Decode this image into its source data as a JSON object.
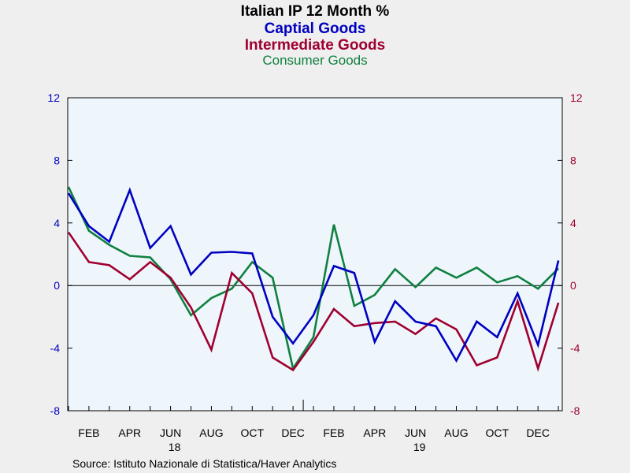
{
  "chart_data": {
    "type": "line",
    "title": "Italian IP 12 Month %",
    "series_titles": [
      {
        "text": "Captial Goods",
        "color": "#0000c0"
      },
      {
        "text": "Intermediate Goods",
        "color": "#a00030"
      },
      {
        "text": "Consumer Goods",
        "color": "#108040"
      }
    ],
    "ylim": [
      -8,
      12
    ],
    "yticks": [
      -8,
      -4,
      0,
      4,
      8,
      12
    ],
    "left_axis_color": "#0000c0",
    "right_axis_color": "#a00030",
    "x": [
      "2018-01",
      "2018-02",
      "2018-03",
      "2018-04",
      "2018-05",
      "2018-06",
      "2018-07",
      "2018-08",
      "2018-09",
      "2018-10",
      "2018-11",
      "2018-12",
      "2019-01",
      "2019-02",
      "2019-03",
      "2019-04",
      "2019-05",
      "2019-06",
      "2019-07",
      "2019-08",
      "2019-09",
      "2019-10",
      "2019-11",
      "2019-12",
      "2020-01"
    ],
    "xtick_labels": [
      "FEB",
      "APR",
      "JUN",
      "AUG",
      "OCT",
      "DEC",
      "FEB",
      "APR",
      "JUN",
      "AUG",
      "OCT",
      "DEC"
    ],
    "xtick_months": [
      1,
      3,
      5,
      7,
      9,
      11,
      13,
      15,
      17,
      19,
      21,
      23
    ],
    "year_labels": [
      {
        "text": "18",
        "month": 5
      },
      {
        "text": "19",
        "month": 17
      }
    ],
    "series": [
      {
        "name": "Captial Goods",
        "color": "#0000c0",
        "values": [
          5.9,
          3.8,
          2.8,
          6.1,
          2.4,
          3.8,
          0.7,
          2.1,
          2.15,
          2.05,
          -2.0,
          -3.7,
          -1.9,
          1.25,
          0.8,
          -3.6,
          -1.0,
          -2.3,
          -2.6,
          -4.8,
          -2.3,
          -3.3,
          -0.5,
          -3.8,
          1.6
        ]
      },
      {
        "name": "Intermediate Goods",
        "color": "#a00030",
        "values": [
          3.4,
          1.5,
          1.3,
          0.4,
          1.5,
          0.5,
          -1.4,
          -4.1,
          0.8,
          -0.5,
          -4.6,
          -5.4,
          -3.6,
          -1.5,
          -2.6,
          -2.4,
          -2.3,
          -3.1,
          -2.1,
          -2.8,
          -5.1,
          -4.6,
          -1.0,
          -5.3,
          -1.1
        ]
      },
      {
        "name": "Consumer Goods",
        "color": "#108040",
        "values": [
          6.3,
          3.5,
          2.6,
          1.9,
          1.8,
          0.4,
          -1.9,
          -0.8,
          -0.2,
          1.5,
          0.5,
          -5.3,
          -3.3,
          3.9,
          -1.3,
          -0.6,
          1.05,
          -0.1,
          1.15,
          0.5,
          1.15,
          0.2,
          0.6,
          -0.2,
          1.1
        ]
      }
    ],
    "source": "Source:  Istituto Nazionale di Statistica/Haver Analytics",
    "grid": false,
    "legend": "none"
  }
}
